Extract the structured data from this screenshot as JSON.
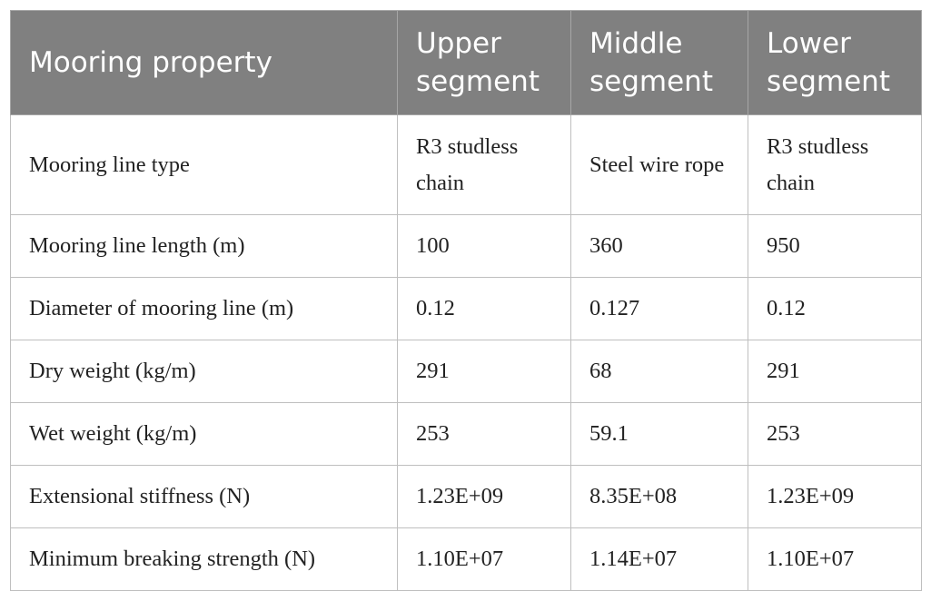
{
  "table": {
    "header": [
      "Mooring property",
      "Upper segment",
      "Middle segment",
      "Lower segment"
    ],
    "rows": [
      [
        "Mooring line type",
        "R3 studless chain",
        "Steel wire rope",
        "R3 studless chain"
      ],
      [
        "Mooring line length (m)",
        "100",
        "360",
        "950"
      ],
      [
        "Diameter of mooring line (m)",
        "0.12",
        "0.127",
        "0.12"
      ],
      [
        "Dry weight (kg/m)",
        "291",
        "68",
        "291"
      ],
      [
        "Wet weight (kg/m)",
        "253",
        "59.1",
        "253"
      ],
      [
        "Extensional stiffness (N)",
        "1.23E+09",
        "8.35E+08",
        "1.23E+09"
      ],
      [
        "Minimum breaking strength (N)",
        "1.10E+07",
        "1.14E+07",
        "1.10E+07"
      ]
    ]
  }
}
